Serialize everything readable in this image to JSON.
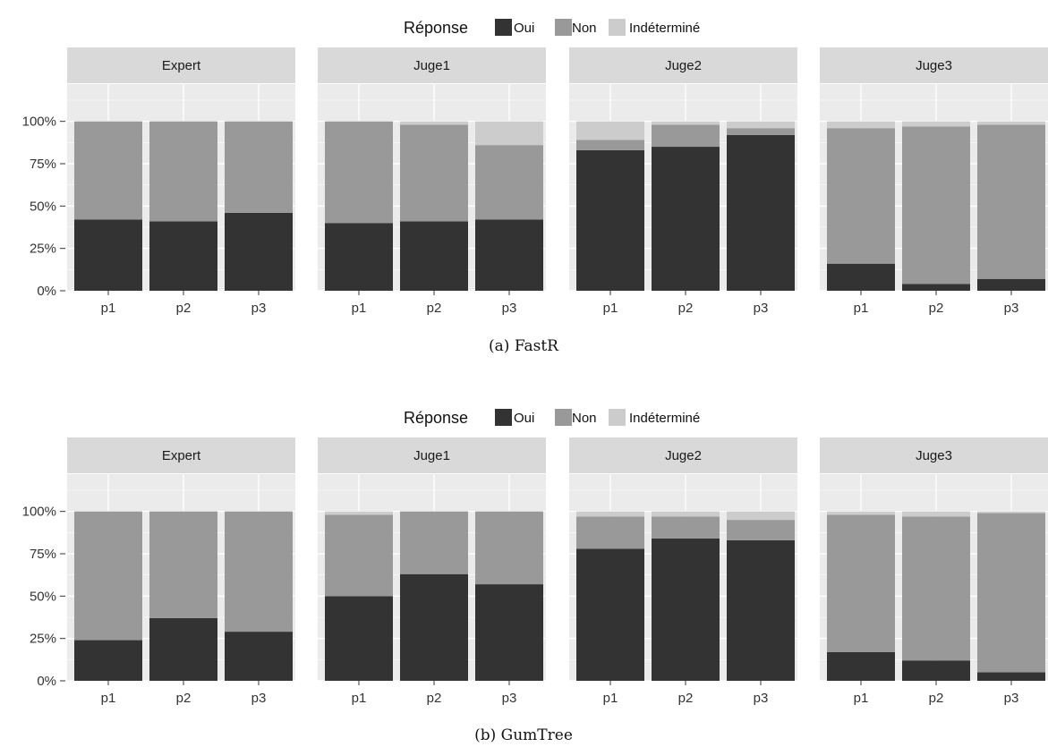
{
  "colors": {
    "Oui": "#333333",
    "Non": "#999999",
    "Indéterminé": "#cccccc",
    "panel_bg": "#ebebeb",
    "strip_bg": "#d9d9d9",
    "grid": "#ffffff"
  },
  "chart_data": [
    {
      "type": "bar",
      "stacked": true,
      "caption": "(a)  FastR",
      "legend_title": "Réponse",
      "legend_position": "top",
      "legend": [
        "Oui",
        "Non",
        "Indéterminé"
      ],
      "y_ticks": [
        "0%",
        "25%",
        "50%",
        "75%",
        "100%"
      ],
      "ylim": [
        0,
        1.22
      ],
      "grid": true,
      "categories": [
        "p1",
        "p2",
        "p3"
      ],
      "panels": [
        {
          "name": "Expert",
          "Oui": [
            0.42,
            0.41,
            0.46
          ],
          "Non": [
            0.58,
            0.59,
            0.54
          ],
          "Indéterminé": [
            0.0,
            0.0,
            0.0
          ]
        },
        {
          "name": "Juge1",
          "Oui": [
            0.4,
            0.41,
            0.42
          ],
          "Non": [
            0.6,
            0.57,
            0.44
          ],
          "Indéterminé": [
            0.0,
            0.02,
            0.14
          ]
        },
        {
          "name": "Juge2",
          "Oui": [
            0.83,
            0.85,
            0.92
          ],
          "Non": [
            0.06,
            0.13,
            0.04
          ],
          "Indéterminé": [
            0.11,
            0.02,
            0.04
          ]
        },
        {
          "name": "Juge3",
          "Oui": [
            0.16,
            0.04,
            0.07
          ],
          "Non": [
            0.8,
            0.93,
            0.91
          ],
          "Indéterminé": [
            0.04,
            0.03,
            0.02
          ]
        }
      ]
    },
    {
      "type": "bar",
      "stacked": true,
      "caption": "(b)  GumTree",
      "legend_title": "Réponse",
      "legend_position": "top",
      "legend": [
        "Oui",
        "Non",
        "Indéterminé"
      ],
      "y_ticks": [
        "0%",
        "25%",
        "50%",
        "75%",
        "100%"
      ],
      "ylim": [
        0,
        1.22
      ],
      "grid": true,
      "categories": [
        "p1",
        "p2",
        "p3"
      ],
      "panels": [
        {
          "name": "Expert",
          "Oui": [
            0.24,
            0.37,
            0.29
          ],
          "Non": [
            0.76,
            0.63,
            0.71
          ],
          "Indéterminé": [
            0.0,
            0.0,
            0.0
          ]
        },
        {
          "name": "Juge1",
          "Oui": [
            0.5,
            0.63,
            0.57
          ],
          "Non": [
            0.48,
            0.37,
            0.43
          ],
          "Indéterminé": [
            0.02,
            0.0,
            0.0
          ]
        },
        {
          "name": "Juge2",
          "Oui": [
            0.78,
            0.84,
            0.83
          ],
          "Non": [
            0.19,
            0.13,
            0.12
          ],
          "Indéterminé": [
            0.03,
            0.03,
            0.05
          ]
        },
        {
          "name": "Juge3",
          "Oui": [
            0.17,
            0.12,
            0.05
          ],
          "Non": [
            0.81,
            0.85,
            0.94
          ],
          "Indéterminé": [
            0.02,
            0.03,
            0.01
          ]
        }
      ]
    }
  ]
}
